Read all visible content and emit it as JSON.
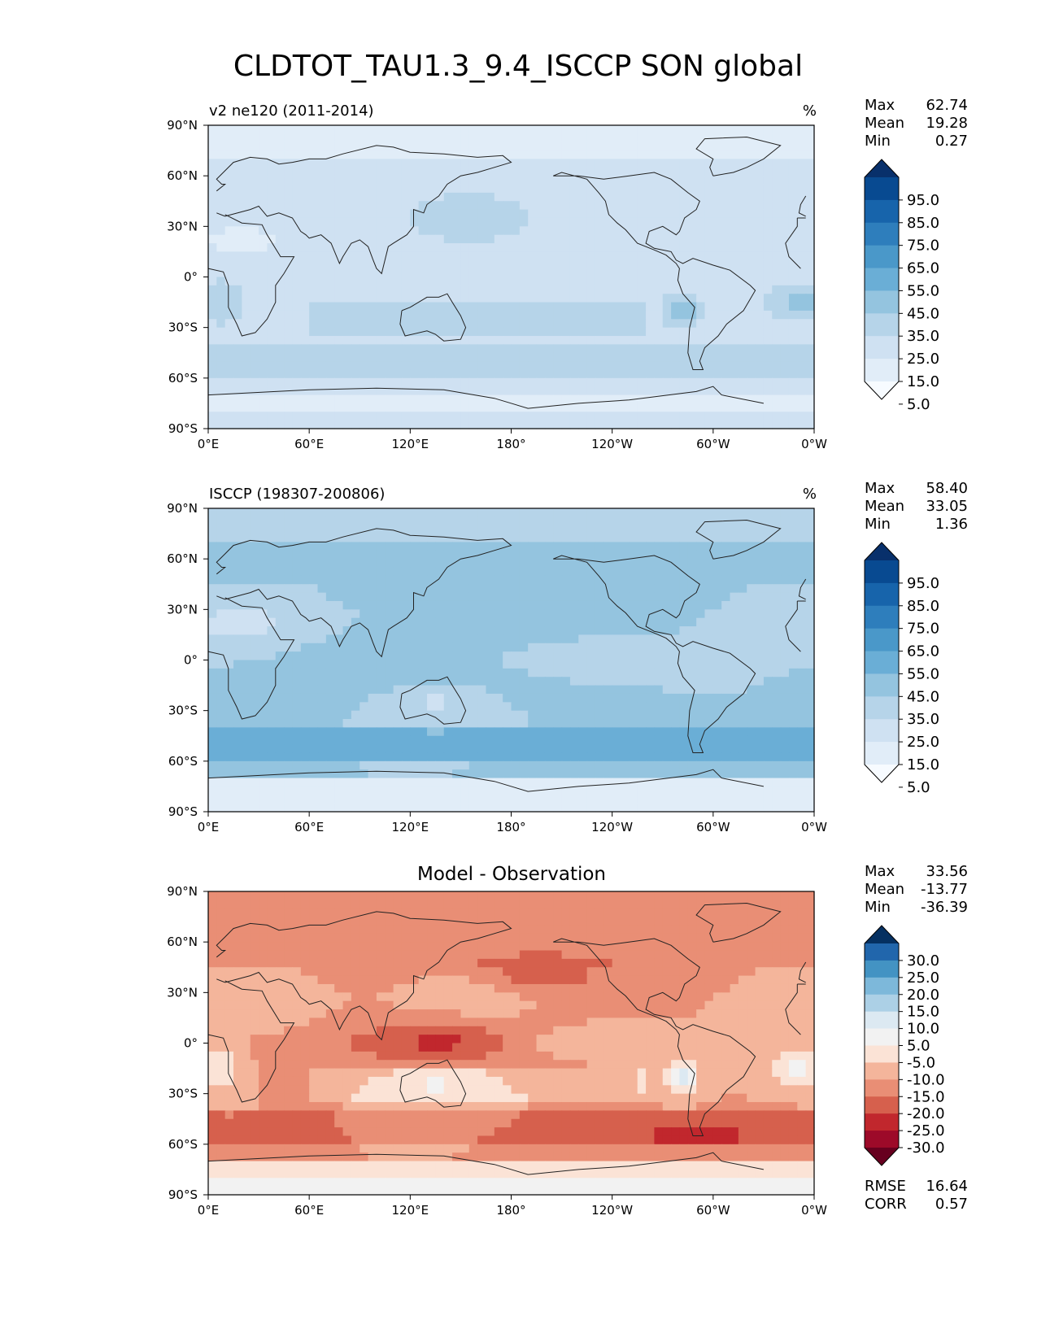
{
  "figure_title": "CLDTOT_TAU1.3_9.4_ISCCP SON global",
  "colors": {
    "blues": [
      "#f7fbff",
      "#e1edf8",
      "#cfe1f2",
      "#b6d4e9",
      "#94c4df",
      "#6aaed6",
      "#4a98c9",
      "#2e7ebc",
      "#1764ab",
      "#084a91",
      "#08306b"
    ],
    "diff": [
      "#67001f",
      "#9d0a29",
      "#c1272d",
      "#d6604d",
      "#e98e75",
      "#f4b59b",
      "#fbe3d6",
      "#f2f2f2",
      "#dce9f2",
      "#acd0e6",
      "#7db8da",
      "#4393c3",
      "#2166ac",
      "#053061"
    ],
    "coast": "#222222"
  },
  "chart_data": [
    {
      "type": "heatmap",
      "panel_title": "v2 ne120 (2011-2014)",
      "units": "%",
      "stats": {
        "max_label": "Max",
        "max": "62.74",
        "mean_label": "Mean",
        "mean": "19.28",
        "min_label": "Min",
        "min": "0.27"
      },
      "xticks": [
        "0°E",
        "60°E",
        "120°E",
        "180°",
        "120°W",
        "60°W",
        "0°W"
      ],
      "yticks": [
        "90°N",
        "60°N",
        "30°N",
        "0°",
        "30°S",
        "60°S",
        "90°S"
      ],
      "xlim": [
        0,
        360
      ],
      "ylim": [
        -90,
        90
      ],
      "colorbar_levels": [
        "95.0",
        "85.0",
        "75.0",
        "65.0",
        "55.0",
        "45.0",
        "35.0",
        "25.0",
        "15.0",
        "5.0"
      ]
    },
    {
      "type": "heatmap",
      "panel_title": "ISCCP (198307-200806)",
      "units": "%",
      "stats": {
        "max_label": "Max",
        "max": "58.40",
        "mean_label": "Mean",
        "mean": "33.05",
        "min_label": "Min",
        "min": "1.36"
      },
      "xticks": [
        "0°E",
        "60°E",
        "120°E",
        "180°",
        "120°W",
        "60°W",
        "0°W"
      ],
      "yticks": [
        "90°N",
        "60°N",
        "30°N",
        "0°",
        "30°S",
        "60°S",
        "90°S"
      ],
      "xlim": [
        0,
        360
      ],
      "ylim": [
        -90,
        90
      ],
      "colorbar_levels": [
        "95.0",
        "85.0",
        "75.0",
        "65.0",
        "55.0",
        "45.0",
        "35.0",
        "25.0",
        "15.0",
        "5.0"
      ]
    },
    {
      "type": "heatmap",
      "panel_title": "Model - Observation",
      "units": "",
      "stats": {
        "max_label": "Max",
        "max": "33.56",
        "mean_label": "Mean",
        "mean": "-13.77",
        "min_label": "Min",
        "min": "-36.39"
      },
      "extra_stats": {
        "rmse_label": "RMSE",
        "rmse": "16.64",
        "corr_label": "CORR",
        "corr": "0.57"
      },
      "xticks": [
        "0°E",
        "60°E",
        "120°E",
        "180°",
        "120°W",
        "60°W",
        "0°W"
      ],
      "yticks": [
        "90°N",
        "60°N",
        "30°N",
        "0°",
        "30°S",
        "60°S",
        "90°S"
      ],
      "xlim": [
        0,
        360
      ],
      "ylim": [
        -90,
        90
      ],
      "colorbar_levels": [
        "30.0",
        "25.0",
        "20.0",
        "15.0",
        "10.0",
        "5.0",
        "-5.0",
        "-10.0",
        "-15.0",
        "-20.0",
        "-25.0",
        "-30.0"
      ]
    }
  ]
}
